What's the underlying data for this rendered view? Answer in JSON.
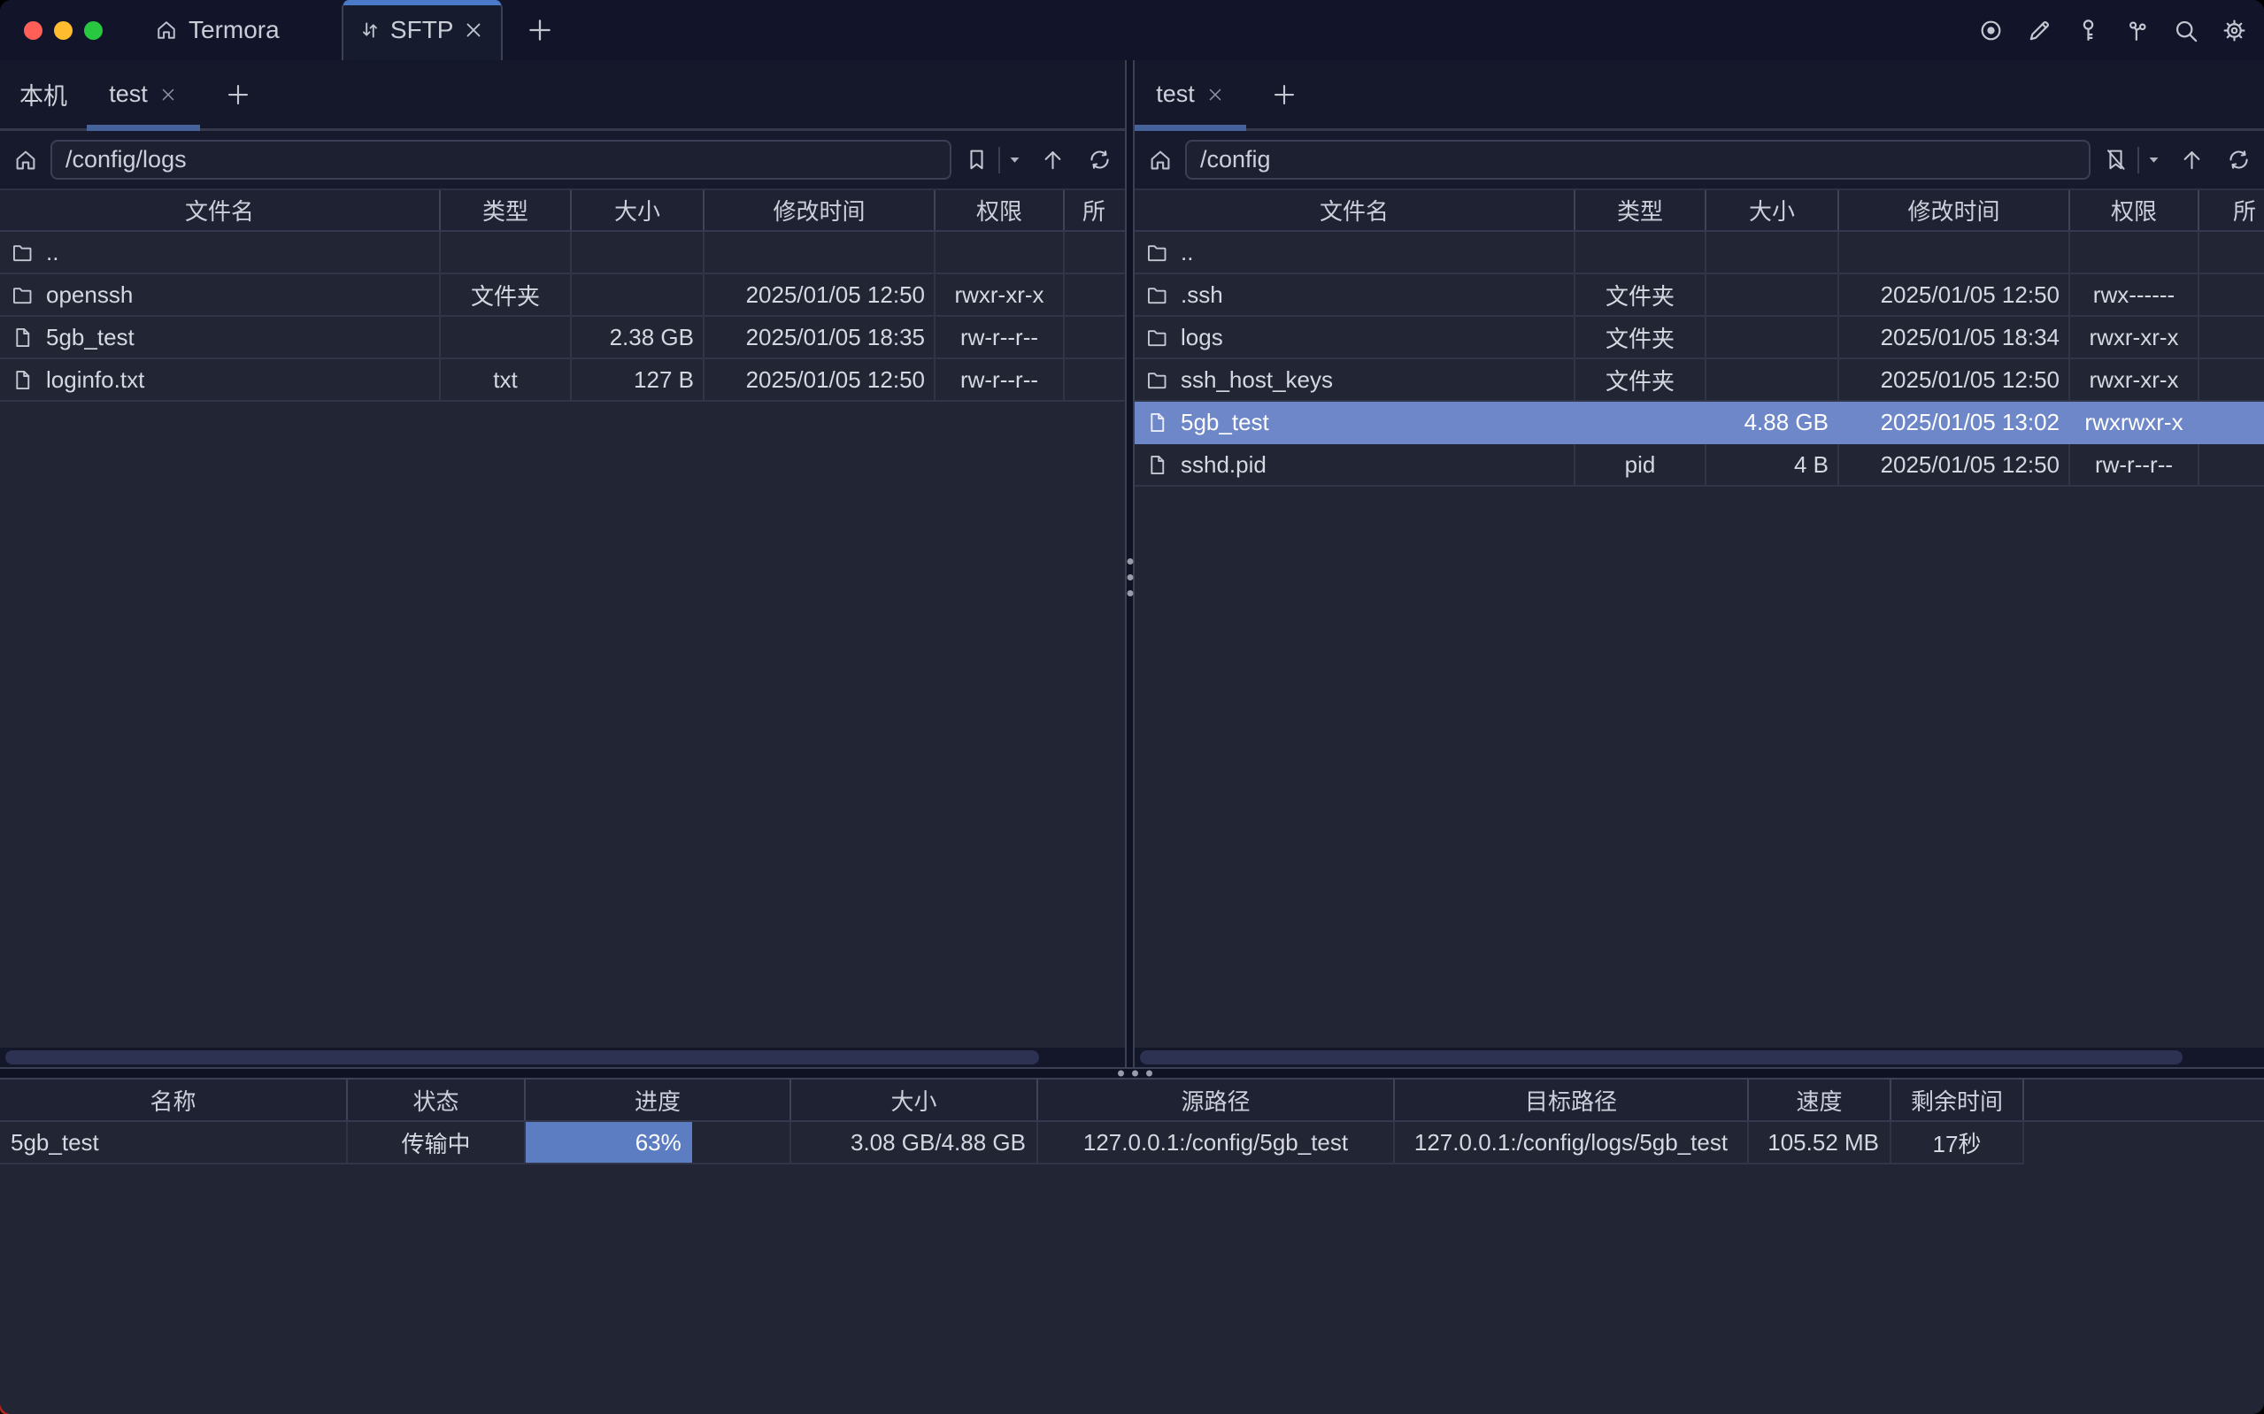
{
  "colors": {
    "accent_blue": "#4b7ac9",
    "tab_underline": "#45639a",
    "selection_blue": "#6d87c8",
    "progress_blue": "#5d7dc2",
    "traffic_red": "#ff5f57",
    "traffic_yellow": "#febc2e",
    "traffic_green": "#28c840"
  },
  "titlebar": {
    "app_tab": {
      "icon": "home-icon",
      "label": "Termora"
    },
    "active_tab": {
      "icon": "transfer-arrows-icon",
      "label": "SFTP"
    },
    "toolbar_icons": [
      "record-icon",
      "edit-icon",
      "key-icon",
      "keychain-icon",
      "search-icon",
      "settings-icon"
    ]
  },
  "left_pane": {
    "tabs": [
      {
        "label": "本机",
        "active": false
      },
      {
        "label": "test",
        "active": true,
        "closable": true
      }
    ],
    "path": "/config/logs",
    "path_tools": [
      "bookmark-icon",
      "caret-down-icon",
      "up-arrow-icon",
      "refresh-icon"
    ],
    "columns": [
      "文件名",
      "类型",
      "大小",
      "修改时间",
      "权限",
      "所"
    ],
    "rows": [
      {
        "icon": "folder",
        "name": "..",
        "type": "",
        "size": "",
        "mtime": "",
        "perm": ""
      },
      {
        "icon": "folder",
        "name": "openssh",
        "type": "文件夹",
        "size": "",
        "mtime": "2025/01/05 12:50",
        "perm": "rwxr-xr-x"
      },
      {
        "icon": "file",
        "name": "5gb_test",
        "type": "",
        "size": "2.38 GB",
        "mtime": "2025/01/05 18:35",
        "perm": "rw-r--r--"
      },
      {
        "icon": "file",
        "name": "loginfo.txt",
        "type": "txt",
        "size": "127 B",
        "mtime": "2025/01/05 12:50",
        "perm": "rw-r--r--"
      }
    ]
  },
  "right_pane": {
    "tabs": [
      {
        "label": "test",
        "active": true,
        "closable": true
      }
    ],
    "path": "/config",
    "path_tools": [
      "bookmark-slash-icon",
      "caret-down-icon",
      "up-arrow-icon",
      "refresh-icon"
    ],
    "columns": [
      "文件名",
      "类型",
      "大小",
      "修改时间",
      "权限",
      "所"
    ],
    "rows": [
      {
        "icon": "folder",
        "name": "..",
        "type": "",
        "size": "",
        "mtime": "",
        "perm": ""
      },
      {
        "icon": "folder",
        "name": ".ssh",
        "type": "文件夹",
        "size": "",
        "mtime": "2025/01/05 12:50",
        "perm": "rwx------"
      },
      {
        "icon": "folder",
        "name": "logs",
        "type": "文件夹",
        "size": "",
        "mtime": "2025/01/05 18:34",
        "perm": "rwxr-xr-x"
      },
      {
        "icon": "folder",
        "name": "ssh_host_keys",
        "type": "文件夹",
        "size": "",
        "mtime": "2025/01/05 12:50",
        "perm": "rwxr-xr-x"
      },
      {
        "icon": "file",
        "name": "5gb_test",
        "type": "",
        "size": "4.88 GB",
        "mtime": "2025/01/05 13:02",
        "perm": "rwxrwxr-x",
        "selected": true
      },
      {
        "icon": "file",
        "name": "sshd.pid",
        "type": "pid",
        "size": "4 B",
        "mtime": "2025/01/05 12:50",
        "perm": "rw-r--r--"
      }
    ]
  },
  "transfers": {
    "columns": [
      "名称",
      "状态",
      "进度",
      "大小",
      "源路径",
      "目标路径",
      "速度",
      "剩余时间"
    ],
    "rows": [
      {
        "name": "5gb_test",
        "status": "传输中",
        "progress_label": "63%",
        "progress_pct": 63,
        "size": "3.08 GB/4.88 GB",
        "source": "127.0.0.1:/config/5gb_test",
        "target": "127.0.0.1:/config/logs/5gb_test",
        "speed": "105.52 MB",
        "remaining": "17秒"
      }
    ]
  }
}
